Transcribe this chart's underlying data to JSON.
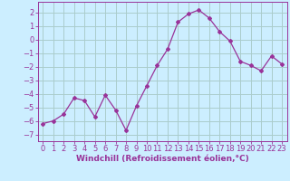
{
  "x": [
    0,
    1,
    2,
    3,
    4,
    5,
    6,
    7,
    8,
    9,
    10,
    11,
    12,
    13,
    14,
    15,
    16,
    17,
    18,
    19,
    20,
    21,
    22,
    23
  ],
  "y": [
    -6.2,
    -6.0,
    -5.5,
    -4.3,
    -4.5,
    -5.7,
    -4.1,
    -5.2,
    -6.7,
    -4.9,
    -3.4,
    -1.9,
    -0.7,
    1.3,
    1.9,
    2.2,
    1.6,
    0.6,
    -0.1,
    -1.6,
    -1.9,
    -2.3,
    -1.2,
    -1.8
  ],
  "line_color": "#993399",
  "marker": "D",
  "marker_size": 2,
  "bg_color": "#cceeff",
  "grid_color": "#aacccc",
  "xlabel": "Windchill (Refroidissement éolien,°C)",
  "xlabel_fontsize": 6.5,
  "tick_fontsize": 6,
  "ylim": [
    -7.5,
    2.8
  ],
  "xlim": [
    -0.5,
    23.5
  ],
  "yticks": [
    -7,
    -6,
    -5,
    -4,
    -3,
    -2,
    -1,
    0,
    1,
    2
  ],
  "xticks": [
    0,
    1,
    2,
    3,
    4,
    5,
    6,
    7,
    8,
    9,
    10,
    11,
    12,
    13,
    14,
    15,
    16,
    17,
    18,
    19,
    20,
    21,
    22,
    23
  ]
}
